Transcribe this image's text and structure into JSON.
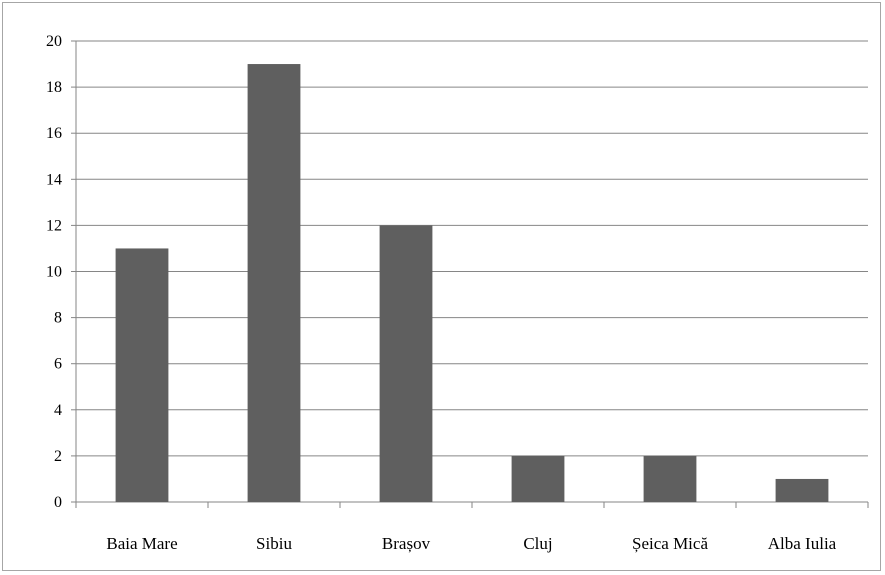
{
  "chart_data": {
    "type": "bar",
    "categories": [
      "Baia Mare",
      "Sibiu",
      "Brașov",
      "Cluj",
      "Șeica Mică",
      "Alba Iulia"
    ],
    "values": [
      11,
      19,
      12,
      2,
      2,
      1
    ],
    "title": "",
    "xlabel": "",
    "ylabel": "",
    "ylim": [
      0,
      20
    ],
    "yticks": [
      "0",
      "2",
      "4",
      "6",
      "8",
      "10",
      "12",
      "14",
      "16",
      "18",
      "20"
    ],
    "grid": true,
    "legend": "none",
    "bar_color": "#5f5f5f",
    "grid_color": "#868686"
  }
}
